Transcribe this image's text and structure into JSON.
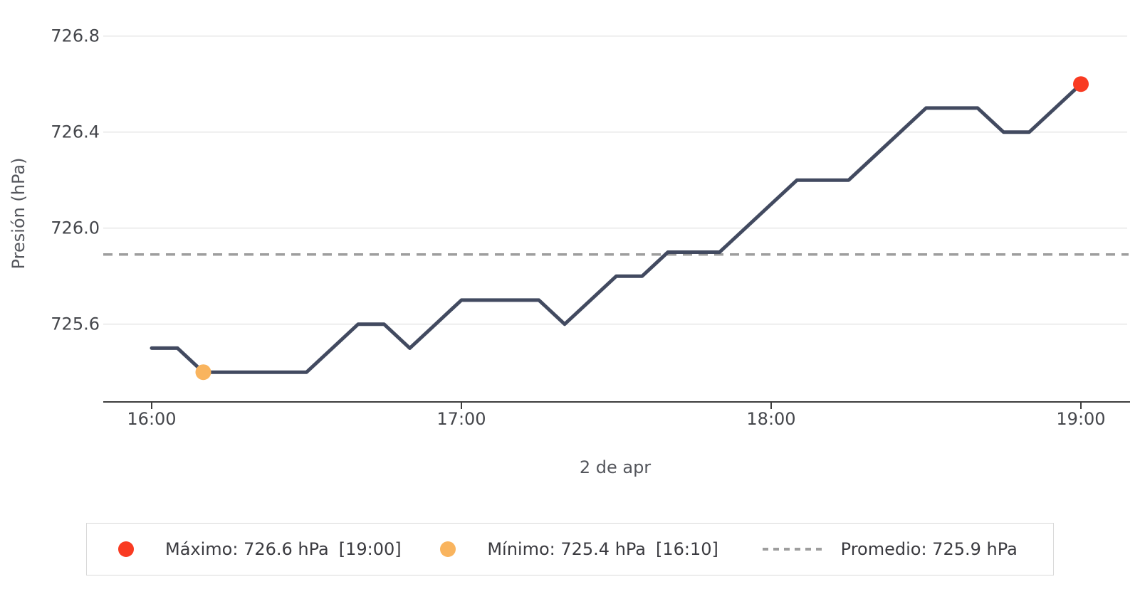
{
  "chart_data": {
    "type": "line",
    "title": "",
    "xlabel": "2 de apr",
    "ylabel": "Presión (hPa)",
    "x_ticks": [
      "16:00",
      "17:00",
      "18:00",
      "19:00"
    ],
    "y_ticks": [
      "726.8",
      "726.4",
      "726.0",
      "725.6"
    ],
    "ylim": [
      725.28,
      726.95
    ],
    "grid": true,
    "legend_position": "bottom",
    "series": [
      {
        "name": "Presión",
        "color": "#424a60",
        "points": [
          [
            "16:00",
            725.5
          ],
          [
            "16:05",
            725.5
          ],
          [
            "16:10",
            725.4
          ],
          [
            "16:15",
            725.4
          ],
          [
            "16:20",
            725.4
          ],
          [
            "16:25",
            725.4
          ],
          [
            "16:30",
            725.4
          ],
          [
            "16:35",
            725.5
          ],
          [
            "16:40",
            725.6
          ],
          [
            "16:45",
            725.6
          ],
          [
            "16:50",
            725.5
          ],
          [
            "16:55",
            725.6
          ],
          [
            "17:00",
            725.7
          ],
          [
            "17:05",
            725.7
          ],
          [
            "17:10",
            725.7
          ],
          [
            "17:15",
            725.7
          ],
          [
            "17:20",
            725.6
          ],
          [
            "17:25",
            725.7
          ],
          [
            "17:30",
            725.8
          ],
          [
            "17:35",
            725.8
          ],
          [
            "17:40",
            725.9
          ],
          [
            "17:45",
            725.9
          ],
          [
            "17:50",
            725.9
          ],
          [
            "17:55",
            726.0
          ],
          [
            "18:00",
            726.1
          ],
          [
            "18:05",
            726.2
          ],
          [
            "18:10",
            726.2
          ],
          [
            "18:15",
            726.2
          ],
          [
            "18:20",
            726.3
          ],
          [
            "18:25",
            726.4
          ],
          [
            "18:30",
            726.5
          ],
          [
            "18:35",
            726.5
          ],
          [
            "18:40",
            726.5
          ],
          [
            "18:45",
            726.4
          ],
          [
            "18:50",
            726.4
          ],
          [
            "18:55",
            726.5
          ],
          [
            "19:00",
            726.6
          ]
        ]
      }
    ],
    "average": {
      "value": 725.89,
      "display": "725.9",
      "color": "#9e9e9e"
    },
    "max_point": {
      "time": "19:00",
      "value": 726.6,
      "color": "#f93b22"
    },
    "min_point": {
      "time": "16:10",
      "value": 725.4,
      "color": "#f9b45e"
    }
  },
  "legend": {
    "items": [
      {
        "marker": "dot",
        "color": "#f93b22",
        "text": "Máximo: 726.6 hPa",
        "bracket": "[19:00]"
      },
      {
        "marker": "dot",
        "color": "#f9b45e",
        "text": "Mínimo: 725.4 hPa",
        "bracket": "[16:10]"
      },
      {
        "marker": "dash",
        "color": "#9e9e9e",
        "text": "Promedio: 725.9 hPa",
        "bracket": ""
      }
    ]
  }
}
